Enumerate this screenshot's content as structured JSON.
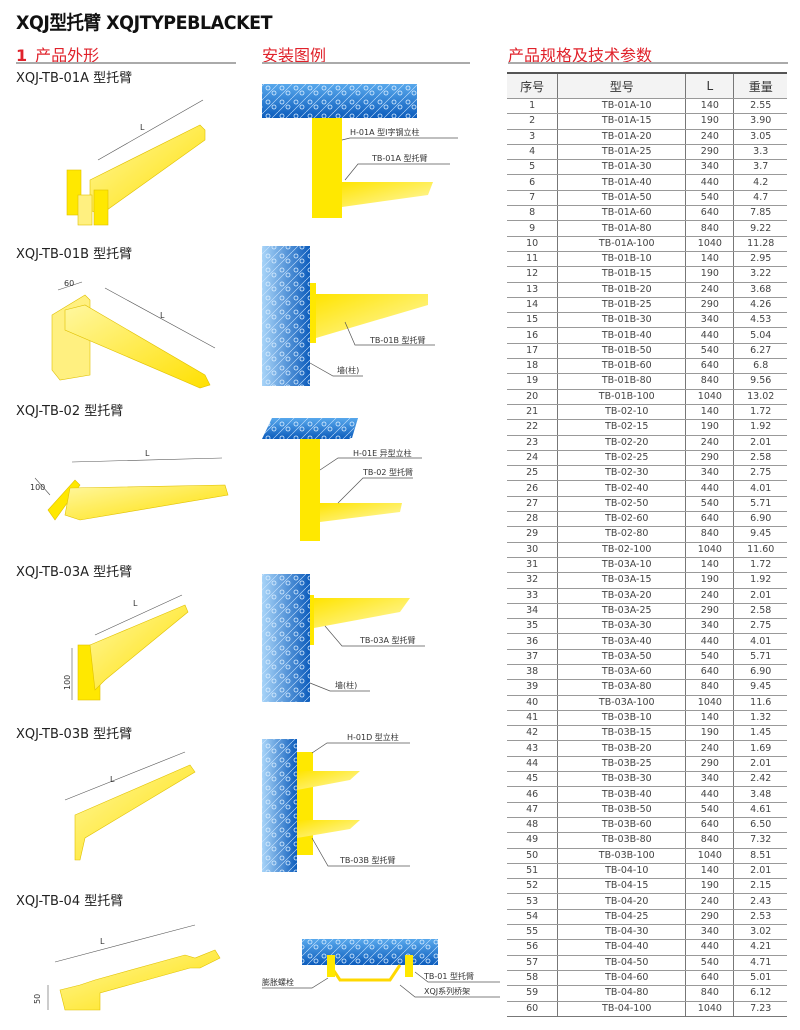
{
  "title": "XQJ型托臂 XQJTYPEBLACKET",
  "sections": {
    "appearance": {
      "number": "1",
      "label": "产品外形"
    },
    "installation": {
      "label": "安装图例"
    },
    "specs": {
      "label": "产品规格及技术参数"
    }
  },
  "products": [
    {
      "name": "XQJ-TB-01A 型托臂",
      "dims": [
        "L"
      ]
    },
    {
      "name": "XQJ-TB-01B 型托臂",
      "dims": [
        "L",
        "60"
      ]
    },
    {
      "name": "XQJ-TB-02 型托臂",
      "dims": [
        "L",
        "100"
      ]
    },
    {
      "name": "XQJ-TB-03A 型托臂",
      "dims": [
        "L",
        "100"
      ]
    },
    {
      "name": "XQJ-TB-03B 型托臂",
      "dims": [
        "L"
      ]
    },
    {
      "name": "XQJ-TB-04 型托臂",
      "dims": [
        "L",
        "50"
      ]
    }
  ],
  "installation_labels": [
    [
      "H-01A 型I字钢立柱",
      "TB-01A 型托臂"
    ],
    [
      "TB-01B 型托臂",
      "墙(柱)"
    ],
    [
      "H-01E 异型立柱",
      "TB-02 型托臂"
    ],
    [
      "TB-03A 型托臂",
      "墙(柱)"
    ],
    [
      "H-01D 型立柱",
      "TB-03B 型托臂"
    ],
    [
      "膨胀螺栓",
      "TB-01 型托臂",
      "XQJ系列桥架"
    ]
  ],
  "colors": {
    "accent": "#e0222b",
    "bracket": "#ffe600",
    "concrete": "#1e6fc8"
  },
  "table": {
    "headers": [
      "序号",
      "型号",
      "L",
      "重量"
    ],
    "rows": [
      [
        "1",
        "TB-01A-10",
        "140",
        "2.55"
      ],
      [
        "2",
        "TB-01A-15",
        "190",
        "3.90"
      ],
      [
        "3",
        "TB-01A-20",
        "240",
        "3.05"
      ],
      [
        "4",
        "TB-01A-25",
        "290",
        "3.3"
      ],
      [
        "5",
        "TB-01A-30",
        "340",
        "3.7"
      ],
      [
        "6",
        "TB-01A-40",
        "440",
        "4.2"
      ],
      [
        "7",
        "TB-01A-50",
        "540",
        "4.7"
      ],
      [
        "8",
        "TB-01A-60",
        "640",
        "7.85"
      ],
      [
        "9",
        "TB-01A-80",
        "840",
        "9.22"
      ],
      [
        "10",
        "TB-01A-100",
        "1040",
        "11.28"
      ],
      [
        "11",
        "TB-01B-10",
        "140",
        "2.95"
      ],
      [
        "12",
        "TB-01B-15",
        "190",
        "3.22"
      ],
      [
        "13",
        "TB-01B-20",
        "240",
        "3.68"
      ],
      [
        "14",
        "TB-01B-25",
        "290",
        "4.26"
      ],
      [
        "15",
        "TB-01B-30",
        "340",
        "4.53"
      ],
      [
        "16",
        "TB-01B-40",
        "440",
        "5.04"
      ],
      [
        "17",
        "TB-01B-50",
        "540",
        "6.27"
      ],
      [
        "18",
        "TB-01B-60",
        "640",
        "6.8"
      ],
      [
        "19",
        "TB-01B-80",
        "840",
        "9.56"
      ],
      [
        "20",
        "TB-01B-100",
        "1040",
        "13.02"
      ],
      [
        "21",
        "TB-02-10",
        "140",
        "1.72"
      ],
      [
        "22",
        "TB-02-15",
        "190",
        "1.92"
      ],
      [
        "23",
        "TB-02-20",
        "240",
        "2.01"
      ],
      [
        "24",
        "TB-02-25",
        "290",
        "2.58"
      ],
      [
        "25",
        "TB-02-30",
        "340",
        "2.75"
      ],
      [
        "26",
        "TB-02-40",
        "440",
        "4.01"
      ],
      [
        "27",
        "TB-02-50",
        "540",
        "5.71"
      ],
      [
        "28",
        "TB-02-60",
        "640",
        "6.90"
      ],
      [
        "29",
        "TB-02-80",
        "840",
        "9.45"
      ],
      [
        "30",
        "TB-02-100",
        "1040",
        "11.60"
      ],
      [
        "31",
        "TB-03A-10",
        "140",
        "1.72"
      ],
      [
        "32",
        "TB-03A-15",
        "190",
        "1.92"
      ],
      [
        "33",
        "TB-03A-20",
        "240",
        "2.01"
      ],
      [
        "34",
        "TB-03A-25",
        "290",
        "2.58"
      ],
      [
        "35",
        "TB-03A-30",
        "340",
        "2.75"
      ],
      [
        "36",
        "TB-03A-40",
        "440",
        "4.01"
      ],
      [
        "37",
        "TB-03A-50",
        "540",
        "5.71"
      ],
      [
        "38",
        "TB-03A-60",
        "640",
        "6.90"
      ],
      [
        "39",
        "TB-03A-80",
        "840",
        "9.45"
      ],
      [
        "40",
        "TB-03A-100",
        "1040",
        "11.6"
      ],
      [
        "41",
        "TB-03B-10",
        "140",
        "1.32"
      ],
      [
        "42",
        "TB-03B-15",
        "190",
        "1.45"
      ],
      [
        "43",
        "TB-03B-20",
        "240",
        "1.69"
      ],
      [
        "44",
        "TB-03B-25",
        "290",
        "2.01"
      ],
      [
        "45",
        "TB-03B-30",
        "340",
        "2.42"
      ],
      [
        "46",
        "TB-03B-40",
        "440",
        "3.48"
      ],
      [
        "47",
        "TB-03B-50",
        "540",
        "4.61"
      ],
      [
        "48",
        "TB-03B-60",
        "640",
        "6.50"
      ],
      [
        "49",
        "TB-03B-80",
        "840",
        "7.32"
      ],
      [
        "50",
        "TB-03B-100",
        "1040",
        "8.51"
      ],
      [
        "51",
        "TB-04-10",
        "140",
        "2.01"
      ],
      [
        "52",
        "TB-04-15",
        "190",
        "2.15"
      ],
      [
        "53",
        "TB-04-20",
        "240",
        "2.43"
      ],
      [
        "54",
        "TB-04-25",
        "290",
        "2.53"
      ],
      [
        "55",
        "TB-04-30",
        "340",
        "3.02"
      ],
      [
        "56",
        "TB-04-40",
        "440",
        "4.21"
      ],
      [
        "57",
        "TB-04-50",
        "540",
        "4.71"
      ],
      [
        "58",
        "TB-04-60",
        "640",
        "5.01"
      ],
      [
        "59",
        "TB-04-80",
        "840",
        "6.12"
      ],
      [
        "60",
        "TB-04-100",
        "1040",
        "7.23"
      ]
    ]
  }
}
